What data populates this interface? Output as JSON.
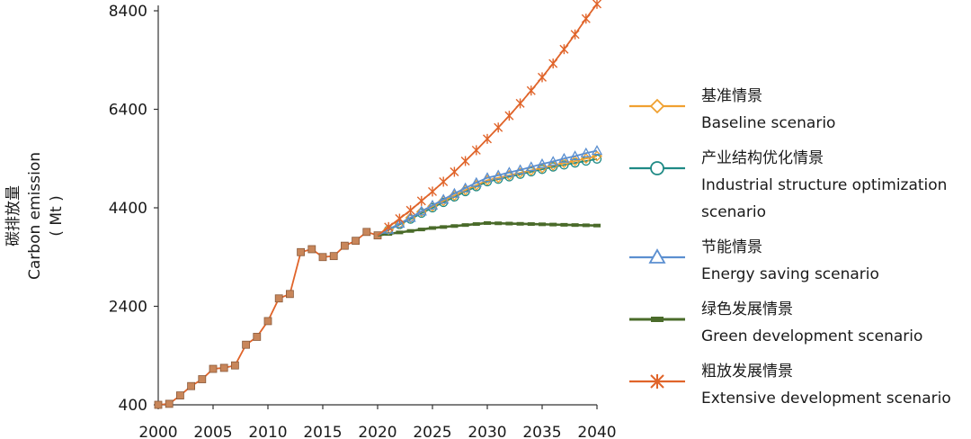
{
  "chart_data": {
    "type": "line",
    "title": "",
    "ylabel_cn": "碳排放量",
    "ylabel_en": "Carbon emission",
    "ylabel_unit": "( Mt )",
    "xlabel": "",
    "xlim": [
      2000,
      2040
    ],
    "ylim": [
      400,
      8400
    ],
    "x_ticks": [
      "2000",
      "2005",
      "2010",
      "2015",
      "2020",
      "2025",
      "2030",
      "2035",
      "2040"
    ],
    "y_ticks": [
      "400",
      "2400",
      "4400",
      "6400",
      "8400"
    ],
    "historical": {
      "x": [
        2000,
        2001,
        2002,
        2003,
        2004,
        2005,
        2006,
        2007,
        2008,
        2009,
        2010,
        2011,
        2012,
        2013,
        2014,
        2015,
        2016,
        2017,
        2018,
        2019,
        2020
      ],
      "values": [
        400,
        420,
        590,
        780,
        920,
        1130,
        1150,
        1200,
        1620,
        1780,
        2100,
        2560,
        2650,
        3500,
        3560,
        3400,
        3420,
        3630,
        3730,
        3910,
        3840
      ]
    },
    "series": [
      {
        "name_cn": "基准情景",
        "name_en": "Baseline scenario",
        "color": "#f0a030",
        "marker": "diamond",
        "x": [
          2020,
          2021,
          2022,
          2023,
          2024,
          2025,
          2026,
          2027,
          2028,
          2029,
          2030,
          2031,
          2032,
          2033,
          2034,
          2035,
          2036,
          2037,
          2038,
          2039,
          2040
        ],
        "values": [
          3840,
          3960,
          4080,
          4200,
          4320,
          4430,
          4540,
          4650,
          4760,
          4860,
          4960,
          5010,
          5060,
          5110,
          5160,
          5210,
          5260,
          5310,
          5350,
          5400,
          5450
        ]
      },
      {
        "name_cn": "产业结构优化情景",
        "name_en": "Industrial structure optimization scenario",
        "color": "#1f8a85",
        "marker": "circle",
        "x": [
          2020,
          2021,
          2022,
          2023,
          2024,
          2025,
          2026,
          2027,
          2028,
          2029,
          2030,
          2031,
          2032,
          2033,
          2034,
          2035,
          2036,
          2037,
          2038,
          2039,
          2040
        ],
        "values": [
          3840,
          3950,
          4060,
          4170,
          4290,
          4400,
          4510,
          4620,
          4730,
          4830,
          4930,
          4980,
          5030,
          5080,
          5130,
          5180,
          5230,
          5270,
          5310,
          5350,
          5390
        ]
      },
      {
        "name_cn": "节能情景",
        "name_en": "Energy saving scenario",
        "color": "#5b8fd0",
        "marker": "triangle",
        "x": [
          2020,
          2021,
          2022,
          2023,
          2024,
          2025,
          2026,
          2027,
          2028,
          2029,
          2030,
          2031,
          2032,
          2033,
          2034,
          2035,
          2036,
          2037,
          2038,
          2039,
          2040
        ],
        "values": [
          3840,
          3960,
          4080,
          4200,
          4330,
          4450,
          4570,
          4690,
          4800,
          4910,
          5010,
          5060,
          5120,
          5170,
          5230,
          5290,
          5340,
          5400,
          5450,
          5510,
          5560
        ]
      },
      {
        "name_cn": "绿色发展情景",
        "name_en": "Green development scenario",
        "color": "#4a6b2a",
        "marker": "dash",
        "x": [
          2020,
          2021,
          2022,
          2023,
          2024,
          2025,
          2026,
          2027,
          2028,
          2029,
          2030,
          2031,
          2032,
          2033,
          2034,
          2035,
          2036,
          2037,
          2038,
          2039,
          2040
        ],
        "values": [
          3840,
          3870,
          3900,
          3930,
          3960,
          3990,
          4010,
          4030,
          4050,
          4070,
          4090,
          4085,
          4080,
          4075,
          4070,
          4065,
          4060,
          4055,
          4050,
          4045,
          4040
        ]
      },
      {
        "name_cn": "粗放发展情景",
        "name_en": "Extensive development scenario",
        "color": "#e0642a",
        "marker": "star",
        "x": [
          2020,
          2021,
          2022,
          2023,
          2024,
          2025,
          2026,
          2027,
          2028,
          2029,
          2030,
          2031,
          2032,
          2033,
          2034,
          2035,
          2036,
          2037,
          2038,
          2039,
          2040
        ],
        "values": [
          3840,
          4010,
          4180,
          4350,
          4540,
          4730,
          4930,
          5130,
          5350,
          5570,
          5800,
          6030,
          6270,
          6520,
          6780,
          7050,
          7330,
          7620,
          7920,
          8240,
          8540
        ]
      }
    ]
  }
}
